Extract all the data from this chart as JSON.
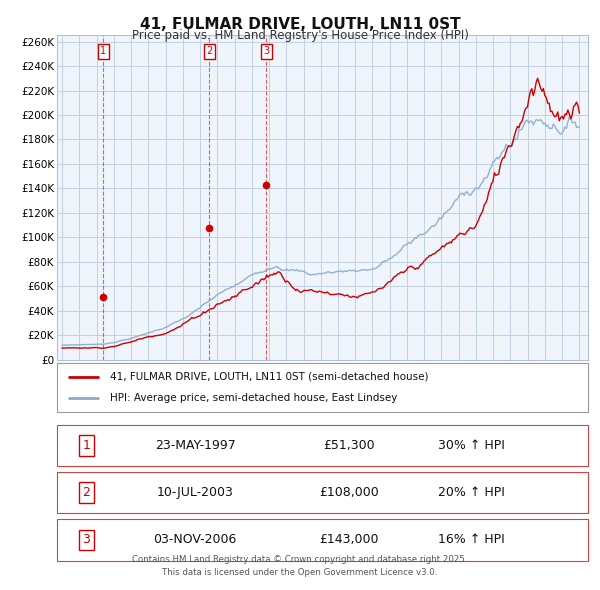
{
  "title": "41, FULMAR DRIVE, LOUTH, LN11 0ST",
  "subtitle": "Price paid vs. HM Land Registry's House Price Index (HPI)",
  "background_color": "#ffffff",
  "plot_bg_color": "#f0f5fc",
  "grid_color": "#c0d0e8",
  "legend_line1": "41, FULMAR DRIVE, LOUTH, LN11 0ST (semi-detached house)",
  "legend_line2": "HPI: Average price, semi-detached house, East Lindsey",
  "line1_color": "#cc0000",
  "line2_color": "#88aacc",
  "purchase_year_floats": [
    1997.39,
    2003.53,
    2006.84
  ],
  "purchase_prices": [
    51300,
    108000,
    143000
  ],
  "table_rows": [
    [
      "1",
      "23-MAY-1997",
      "£51,300",
      "30% ↑ HPI"
    ],
    [
      "2",
      "10-JUL-2003",
      "£108,000",
      "20% ↑ HPI"
    ],
    [
      "3",
      "03-NOV-2006",
      "£143,000",
      "16% ↑ HPI"
    ]
  ],
  "footer_text": "Contains HM Land Registry data © Crown copyright and database right 2025.\nThis data is licensed under the Open Government Licence v3.0."
}
